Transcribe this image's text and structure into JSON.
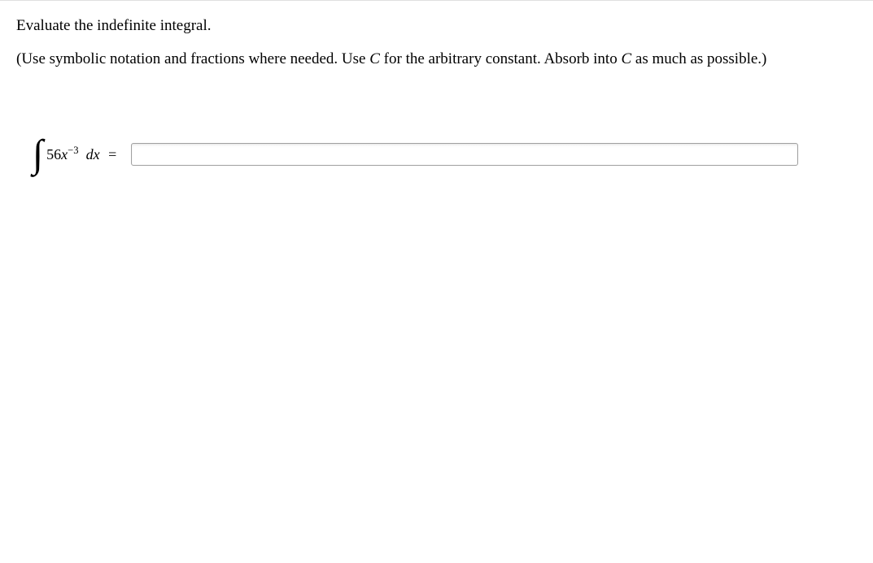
{
  "instructions": {
    "line1": "Evaluate the indefinite integral.",
    "line2_prefix": "(Use symbolic notation and fractions where needed. Use ",
    "line2_var1": "C",
    "line2_mid": " for the arbitrary constant. Absorb into ",
    "line2_var2": "C",
    "line2_suffix": " as much as possible.)"
  },
  "equation": {
    "coefficient": "56",
    "variable": "x",
    "exponent": "−3",
    "differential": "dx",
    "equals": "="
  },
  "input": {
    "value": ""
  },
  "styling": {
    "font_family": "Georgia, Times New Roman, serif",
    "instruction_fontsize": 19,
    "text_color": "#000000",
    "background_color": "#ffffff",
    "input_border_color": "#a0a0a0",
    "input_height": 28,
    "input_width": 820,
    "border_top_color": "#e0e0e0"
  }
}
